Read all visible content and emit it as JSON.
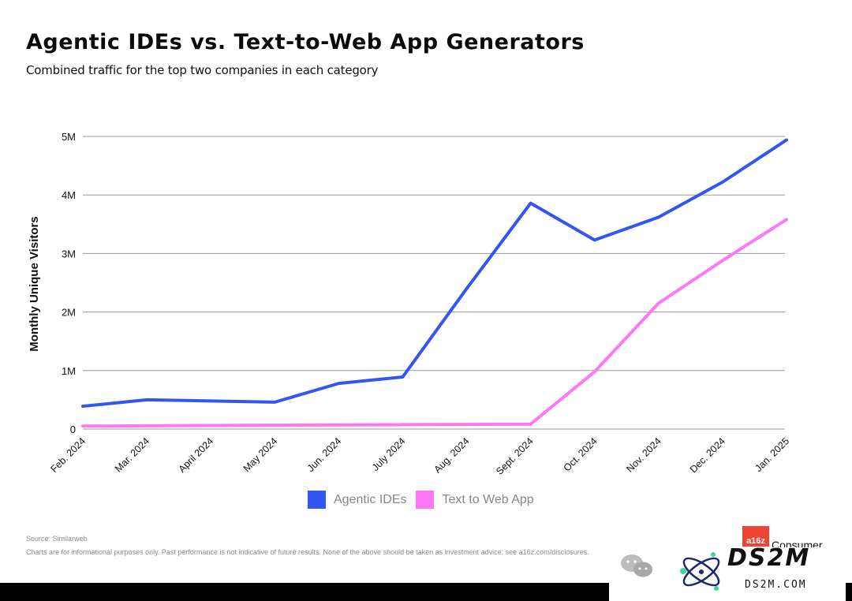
{
  "header": {
    "title": "Agentic IDEs vs. Text-to-Web App Generators",
    "subtitle": "Combined traffic for the top two companies in each category"
  },
  "footer": {
    "source": "Source: Similarweb",
    "disclaimer": "Charts are for informational purposes only. Past performance is not indicative of future results. None of the above should be taken as investment advice; see a16z.com/disclosures."
  },
  "branding": {
    "logo_text": "a16z",
    "brand_text": "Consumer",
    "watermark_text": "DS2M",
    "watermark_url": "DS2M.COM"
  },
  "colors": {
    "agentic": "#3355f0",
    "text_to_web": "#ff77f5",
    "grid": "#9a9a9a"
  },
  "chart_data": {
    "type": "line",
    "title": "Agentic IDEs vs. Text-to-Web App Generators",
    "subtitle": "Combined traffic for the top two companies in each category",
    "xlabel": "",
    "ylabel": "Monthly Unique Visitors",
    "ylim": [
      0,
      5000000
    ],
    "yticks": [
      {
        "value": 0,
        "label": "0"
      },
      {
        "value": 1000000,
        "label": "1M"
      },
      {
        "value": 2000000,
        "label": "2M"
      },
      {
        "value": 3000000,
        "label": "3M"
      },
      {
        "value": 4000000,
        "label": "4M"
      },
      {
        "value": 5000000,
        "label": "5M"
      }
    ],
    "categories": [
      "Feb. 2024",
      "Mar. 2024",
      "April 2024",
      "May 2024",
      "Jun. 2024",
      "July 2024",
      "Aug. 2024",
      "Sept. 2024",
      "Oct. 2024",
      "Nov. 2024",
      "Dec. 2024",
      "Jan. 2025"
    ],
    "series": [
      {
        "name": "Agentic IDEs",
        "color": "#3355f0",
        "values": [
          390000,
          500000,
          480000,
          460000,
          780000,
          890000,
          2400000,
          3860000,
          3230000,
          3620000,
          4220000,
          4940000
        ]
      },
      {
        "name": "Text to Web App",
        "color": "#ff77f5",
        "values": [
          50000,
          55000,
          60000,
          65000,
          70000,
          75000,
          80000,
          85000,
          980000,
          2150000,
          2880000,
          3580000
        ]
      }
    ],
    "grid": true,
    "legend": "bottom-center"
  }
}
